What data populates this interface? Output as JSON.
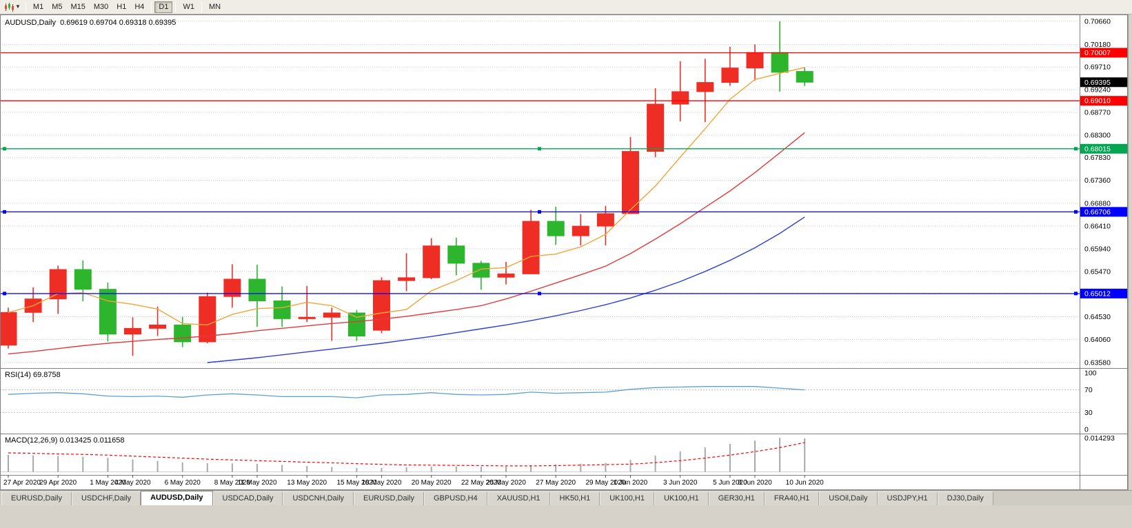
{
  "toolbar": {
    "chart_icon": "candlestick-chart-icon",
    "timeframes": [
      {
        "label": "M1",
        "active": false
      },
      {
        "label": "M5",
        "active": false
      },
      {
        "label": "M15",
        "active": false
      },
      {
        "label": "M30",
        "active": false
      },
      {
        "label": "H1",
        "active": false
      },
      {
        "label": "H4",
        "active": false
      },
      {
        "label": "D1",
        "active": true,
        "sep_before": true
      },
      {
        "label": "W1",
        "active": false,
        "sep_before": true
      },
      {
        "label": "MN",
        "active": false,
        "sep_before": true
      }
    ]
  },
  "chart_header": {
    "title": "AUDUSD,Daily",
    "ohlc_text": "0.69619 0.69704 0.69318 0.69395"
  },
  "rsi_header": {
    "name": "RSI(14)",
    "value": "69.8758"
  },
  "macd_header": {
    "name": "MACD(12,26,9)",
    "values": "0.013425 0.011658"
  },
  "tabs": {
    "active_index": 2,
    "items": [
      {
        "label": "EURUSD,Daily"
      },
      {
        "label": "USDCHF,Daily"
      },
      {
        "label": "AUDUSD,Daily"
      },
      {
        "label": "USDCAD,Daily"
      },
      {
        "label": "USDCNH,Daily"
      },
      {
        "label": "EURUSD,Daily"
      },
      {
        "label": "GBPUSD,H4"
      },
      {
        "label": "XAUUSD,H1"
      },
      {
        "label": "HK50,H1"
      },
      {
        "label": "UK100,H1"
      },
      {
        "label": "UK100,H1"
      },
      {
        "label": "GER30,H1"
      },
      {
        "label": "FRA40,H1"
      },
      {
        "label": "USOil,Daily"
      },
      {
        "label": "USDJPY,H1"
      },
      {
        "label": "DJ30,Daily"
      }
    ]
  },
  "chart_data": {
    "type": "candlestick",
    "symbol": "AUDUSD",
    "timeframe": "Daily",
    "ohlc_current": {
      "open": 0.69619,
      "high": 0.69704,
      "low": 0.69318,
      "close": 0.69395
    },
    "colors": {
      "up": "#ee2e24",
      "down": "#2db52d"
    },
    "y_axis": {
      "max": 0.708,
      "min": 0.6348,
      "labels": [
        "0.70660",
        "0.70180",
        "0.69710",
        "0.69240",
        "0.68770",
        "0.68300",
        "0.67830",
        "0.67360",
        "0.66880",
        "0.66410",
        "0.65940",
        "0.65470",
        "0.65000",
        "0.64530",
        "0.64060",
        "0.63580"
      ]
    },
    "candles": [
      [
        "27 Apr",
        0.6394,
        0.6472,
        0.6387,
        0.6462
      ],
      [
        "28 Apr",
        0.6462,
        0.6514,
        0.6442,
        0.649
      ],
      [
        "29 Apr",
        0.649,
        0.6559,
        0.6459,
        0.6551
      ],
      [
        "30 Apr",
        0.6551,
        0.657,
        0.6485,
        0.651
      ],
      [
        "1 May",
        0.651,
        0.6524,
        0.6402,
        0.6417
      ],
      [
        "4 May",
        0.6417,
        0.6452,
        0.6372,
        0.6429
      ],
      [
        "5 May",
        0.6429,
        0.6474,
        0.6413,
        0.6436
      ],
      [
        "6 May",
        0.6436,
        0.6453,
        0.639,
        0.6401
      ],
      [
        "7 May",
        0.6401,
        0.6503,
        0.6398,
        0.6495
      ],
      [
        "8 May",
        0.6495,
        0.6562,
        0.6472,
        0.6531
      ],
      [
        "11 May",
        0.6531,
        0.6561,
        0.6432,
        0.6486
      ],
      [
        "12 May",
        0.6486,
        0.6516,
        0.6432,
        0.6449
      ],
      [
        "13 May",
        0.6449,
        0.6517,
        0.6442,
        0.6452
      ],
      [
        "14 May",
        0.6452,
        0.6472,
        0.6403,
        0.6461
      ],
      [
        "15 May",
        0.6461,
        0.6467,
        0.6403,
        0.6413
      ],
      [
        "18 May",
        0.6425,
        0.6535,
        0.6419,
        0.6528
      ],
      [
        "19 May",
        0.6528,
        0.6585,
        0.6506,
        0.6534
      ],
      [
        "20 May",
        0.6534,
        0.6616,
        0.6531,
        0.66
      ],
      [
        "21 May",
        0.66,
        0.6617,
        0.6539,
        0.6564
      ],
      [
        "22 May",
        0.6564,
        0.6569,
        0.6509,
        0.6535
      ],
      [
        "25 May",
        0.6535,
        0.6567,
        0.652,
        0.6542
      ],
      [
        "26 May",
        0.6542,
        0.6675,
        0.6542,
        0.6651
      ],
      [
        "27 May",
        0.6651,
        0.6681,
        0.6602,
        0.6621
      ],
      [
        "28 May",
        0.6621,
        0.6666,
        0.6601,
        0.6641
      ],
      [
        "29 May",
        0.6641,
        0.6683,
        0.6601,
        0.6667
      ],
      [
        "1 Jun",
        0.6667,
        0.6826,
        0.6667,
        0.6796
      ],
      [
        "2 Jun",
        0.6796,
        0.6927,
        0.6784,
        0.6894
      ],
      [
        "3 Jun",
        0.6894,
        0.6983,
        0.6858,
        0.692
      ],
      [
        "4 Jun",
        0.692,
        0.6988,
        0.6857,
        0.6939
      ],
      [
        "5 Jun",
        0.6939,
        0.7013,
        0.6932,
        0.6969
      ],
      [
        "8 Jun",
        0.6969,
        0.7018,
        0.6943,
        0.7001
      ],
      [
        "9 Jun",
        0.7001,
        0.7066,
        0.692,
        0.696
      ],
      [
        "10 Jun",
        0.69619,
        0.69704,
        0.69318,
        0.69395
      ]
    ],
    "x_ticks": [
      [
        0,
        "27 Apr 2020"
      ],
      [
        2,
        "29 Apr 2020"
      ],
      [
        4,
        "1 May 2020"
      ],
      [
        5,
        "4 May 2020"
      ],
      [
        7,
        "6 May 2020"
      ],
      [
        9,
        "8 May 2020"
      ],
      [
        10,
        "11 May 2020"
      ],
      [
        12,
        "13 May 2020"
      ],
      [
        14,
        "15 May 2020"
      ],
      [
        15,
        "18 May 2020"
      ],
      [
        17,
        "20 May 2020"
      ],
      [
        19,
        "22 May 2020"
      ],
      [
        20,
        "25 May 2020"
      ],
      [
        22,
        "27 May 2020"
      ],
      [
        24,
        "29 May 2020"
      ],
      [
        25,
        "1 Jun 2020"
      ],
      [
        27,
        "3 Jun 2020"
      ],
      [
        29,
        "5 Jun 2020"
      ],
      [
        30,
        "8 Jun 2020"
      ],
      [
        32,
        "10 Jun 2020"
      ]
    ],
    "levels": [
      {
        "price": 0.70007,
        "label": "0.70007",
        "color": "#ff0000",
        "handles": false
      },
      {
        "price": 0.6901,
        "label": "0.69010",
        "color": "#ff0000",
        "handles": false
      },
      {
        "price": 0.68015,
        "label": "0.68015",
        "color": "#00a650",
        "handles": true
      },
      {
        "price": 0.66706,
        "label": "0.66706",
        "color": "#0000ff",
        "handles": true
      },
      {
        "price": 0.65012,
        "label": "0.65012",
        "color": "#0000ff",
        "handles": true
      }
    ],
    "current_price": {
      "price": 0.69395,
      "label": "0.69395",
      "bg": "#000000"
    },
    "moving_averages": [
      {
        "name": "ma-fast-line",
        "color": "#f0a43c",
        "values": [
          0.6462,
          0.6476,
          0.6501,
          0.6503,
          0.6486,
          0.6479,
          0.6469,
          0.6439,
          0.6436,
          0.6458,
          0.647,
          0.6472,
          0.6483,
          0.6476,
          0.6452,
          0.6461,
          0.6468,
          0.6507,
          0.6528,
          0.6552,
          0.6555,
          0.6578,
          0.6583,
          0.6598,
          0.6624,
          0.6675,
          0.6724,
          0.6784,
          0.6843,
          0.6904,
          0.6945,
          0.6958,
          0.697
        ]
      },
      {
        "name": "ma-mid-line",
        "color": "#e23a3a",
        "values": [
          0.6376,
          0.6381,
          0.6387,
          0.6393,
          0.6398,
          0.6402,
          0.6406,
          0.6409,
          0.6413,
          0.6418,
          0.6424,
          0.6429,
          0.6434,
          0.6439,
          0.6443,
          0.6448,
          0.6454,
          0.6461,
          0.6468,
          0.6476,
          0.649,
          0.6506,
          0.6523,
          0.654,
          0.6558,
          0.6584,
          0.6614,
          0.6646,
          0.668,
          0.6714,
          0.6752,
          0.6793,
          0.6835
        ]
      },
      {
        "name": "ma-slow-line",
        "color": "#2b3fd6",
        "values": [
          null,
          null,
          null,
          null,
          null,
          null,
          null,
          null,
          0.6358,
          0.6363,
          0.6368,
          0.6374,
          0.638,
          0.6386,
          0.6392,
          0.6398,
          0.6405,
          0.6412,
          0.642,
          0.6428,
          0.6436,
          0.6445,
          0.6455,
          0.6466,
          0.6478,
          0.6492,
          0.6508,
          0.6526,
          0.6547,
          0.657,
          0.6596,
          0.6626,
          0.666
        ]
      }
    ],
    "rsi": {
      "name": "RSI(14)",
      "current": 69.8758,
      "color": "#5ba1d0",
      "levels": [
        100,
        70,
        30,
        0
      ],
      "dashed_levels": [
        70,
        30
      ],
      "values": [
        62,
        64,
        65,
        63,
        59,
        58,
        59,
        57,
        61,
        63,
        61,
        58,
        58,
        58,
        56,
        61,
        62,
        65,
        62,
        61,
        62,
        66,
        64,
        65,
        66,
        71,
        74,
        75,
        76,
        76,
        76,
        73,
        70
      ]
    },
    "macd": {
      "name": "MACD(12,26,9)",
      "main_current": 0.013425,
      "signal_current": 0.011658,
      "scale_top_label": "0.014293",
      "scale_max": 0.01475,
      "scale_min": -0.0012,
      "histogram_color": "#a8a8a8",
      "signal_color": "#ff0000",
      "histogram": [
        0.0068,
        0.0066,
        0.0064,
        0.0061,
        0.0056,
        0.005,
        0.0044,
        0.0038,
        0.0035,
        0.0034,
        0.0032,
        0.0028,
        0.0024,
        0.002,
        0.0016,
        0.0016,
        0.0018,
        0.0021,
        0.0022,
        0.0021,
        0.0021,
        0.0026,
        0.003,
        0.0033,
        0.0036,
        0.0048,
        0.0065,
        0.0082,
        0.0098,
        0.0112,
        0.0125,
        0.0136,
        0.0134
      ],
      "signal": [
        0.0076,
        0.0074,
        0.0072,
        0.007,
        0.0067,
        0.0063,
        0.0059,
        0.0055,
        0.0051,
        0.0048,
        0.0045,
        0.0042,
        0.0039,
        0.0036,
        0.0033,
        0.003,
        0.0028,
        0.0027,
        0.0026,
        0.0025,
        0.0024,
        0.0024,
        0.0025,
        0.0027,
        0.0029,
        0.0031,
        0.0037,
        0.0045,
        0.0055,
        0.0067,
        0.0081,
        0.0097,
        0.0117
      ]
    }
  }
}
